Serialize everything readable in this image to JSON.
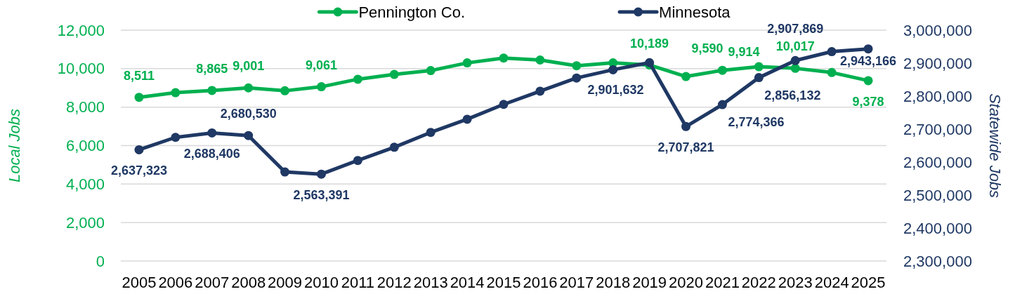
{
  "chart_data": {
    "type": "line",
    "categories": [
      "2005",
      "2006",
      "2007",
      "2008",
      "2009",
      "2010",
      "2011",
      "2012",
      "2013",
      "2014",
      "2015",
      "2016",
      "2017",
      "2018",
      "2019",
      "2020",
      "2021",
      "2022",
      "2023",
      "2024",
      "2025"
    ],
    "ylabel": "Local Jobs",
    "y2label": "Statewide Jobs",
    "ylim": [
      0,
      12000
    ],
    "yticks": [
      0,
      {
        "value": 2000,
        "label": "2,000"
      },
      {
        "value": 4000,
        "label": "4,000"
      },
      {
        "value": 6000,
        "label": "6,000"
      },
      {
        "value": 8000,
        "label": "8,000"
      },
      {
        "value": 10000,
        "label": "10,000"
      },
      {
        "value": 12000,
        "label": "12,000"
      }
    ],
    "y2lim": [
      2300000,
      3000000
    ],
    "y2ticks": [
      {
        "value": 2300000,
        "label": "2,300,000"
      },
      {
        "value": 2400000,
        "label": "2,400,000"
      },
      {
        "value": 2500000,
        "label": "2,500,000"
      },
      {
        "value": 2600000,
        "label": "2,600,000"
      },
      {
        "value": 2700000,
        "label": "2,700,000"
      },
      {
        "value": 2800000,
        "label": "2,800,000"
      },
      {
        "value": 2900000,
        "label": "2,900,000"
      },
      {
        "value": 3000000,
        "label": "3,000,000"
      }
    ],
    "grid": "y",
    "legend": "top",
    "marker": "circle",
    "series": [
      {
        "name": "Pennington Co.",
        "color": "#00b050",
        "values": [
          8511,
          8750,
          8865,
          9001,
          8850,
          9061,
          9450,
          9700,
          9900,
          10300,
          10550,
          10450,
          10150,
          10300,
          10189,
          9590,
          9914,
          10100,
          10017,
          9800,
          9378
        ],
        "value_labels": [
          "8,511",
          null,
          "8,865",
          "9,001",
          null,
          "9,061",
          null,
          null,
          null,
          null,
          null,
          null,
          null,
          null,
          "10,189",
          "9,590",
          "9,914",
          null,
          "10,017",
          null,
          "9,378"
        ]
      },
      {
        "name": "Minnesota",
        "color": "#1f3864",
        "axis": "y2",
        "values": [
          2637323,
          2675000,
          2688406,
          2680530,
          2570000,
          2563391,
          2605000,
          2645000,
          2690000,
          2730000,
          2775000,
          2815000,
          2855000,
          2880000,
          2901632,
          2707821,
          2774366,
          2856132,
          2907869,
          2935000,
          2943166
        ],
        "value_labels": [
          "2,637,323",
          null,
          "2,688,406",
          "2,680,530",
          null,
          "2,563,391",
          null,
          null,
          null,
          null,
          null,
          null,
          null,
          null,
          "2,901,632",
          "2,707,821",
          "2,774,366",
          "2,856,132",
          "2,907,869",
          null,
          "2,943,166"
        ]
      }
    ]
  }
}
